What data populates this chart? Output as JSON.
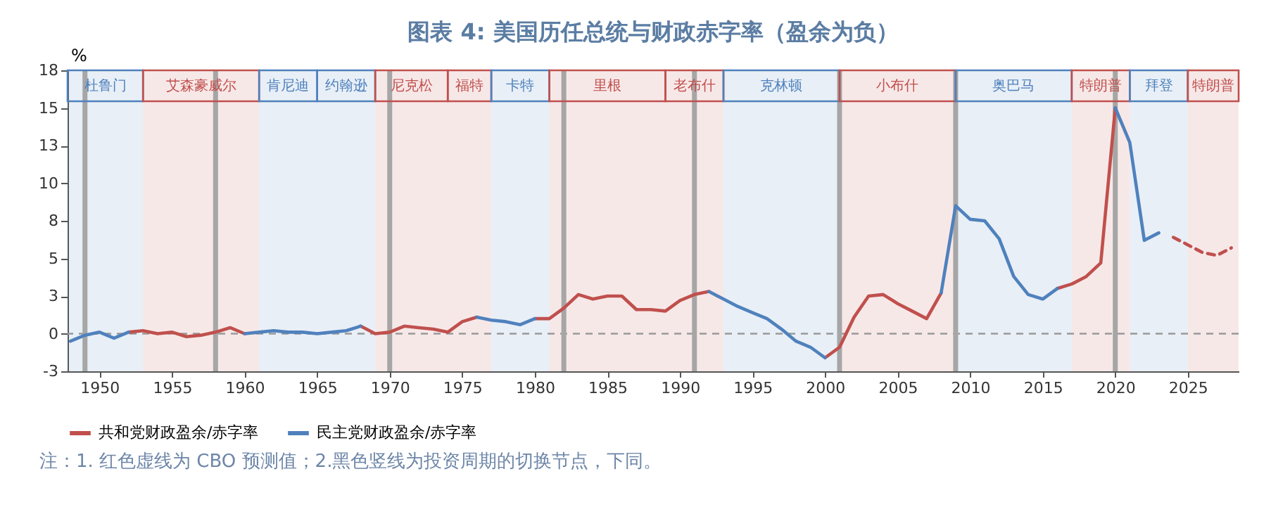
{
  "chart_data": {
    "type": "line",
    "title": "图表 4: 美国历任总统与财政赤字率（盈余为负）",
    "ylabel": "%",
    "annotations": [
      "注：1. 红色虚线为 CBO 预测值；2.黑色竖线为投资周期的切换节点，下同。"
    ],
    "x": [
      1948,
      1949,
      1950,
      1951,
      1952,
      1953,
      1954,
      1955,
      1956,
      1957,
      1958,
      1959,
      1960,
      1961,
      1962,
      1963,
      1964,
      1965,
      1966,
      1967,
      1968,
      1969,
      1970,
      1971,
      1972,
      1973,
      1974,
      1975,
      1976,
      1977,
      1978,
      1979,
      1980,
      1981,
      1982,
      1983,
      1984,
      1985,
      1986,
      1987,
      1988,
      1989,
      1990,
      1991,
      1992,
      1993,
      1994,
      1995,
      1996,
      1997,
      1998,
      1999,
      2000,
      2001,
      2002,
      2003,
      2004,
      2005,
      2006,
      2007,
      2008,
      2009,
      2010,
      2011,
      2012,
      2013,
      2014,
      2015,
      2016,
      2017,
      2018,
      2019,
      2020,
      2021,
      2022,
      2023
    ],
    "series": [
      {
        "name": "共和党财政盈余/赤字率",
        "color": "#c0504d",
        "values": [
          null,
          null,
          null,
          null,
          0.1,
          0.2,
          0,
          0.1,
          -0.2,
          -0.1,
          0.1,
          0.4,
          0,
          null,
          null,
          null,
          null,
          null,
          null,
          null,
          0.5,
          0,
          0.1,
          0.5,
          0.4,
          0.3,
          0.1,
          0.8,
          1.1,
          null,
          null,
          null,
          1.0,
          1.0,
          1.7,
          2.6,
          2.3,
          2.5,
          2.5,
          1.6,
          1.6,
          1.5,
          2.2,
          2.6,
          2.8,
          null,
          null,
          null,
          null,
          null,
          null,
          null,
          -1.6,
          -0.9,
          1.1,
          2.5,
          2.6,
          2.0,
          1.5,
          1.0,
          2.7,
          null,
          null,
          null,
          null,
          null,
          null,
          null,
          3.0,
          3.3,
          3.8,
          4.7,
          15.0,
          null,
          null,
          null
        ]
      },
      {
        "name": "民主党财政盈余/赤字率",
        "color": "#4f81bd",
        "values": [
          -0.5,
          -0.1,
          0.1,
          -0.3,
          0.1,
          null,
          null,
          null,
          null,
          null,
          null,
          null,
          0,
          0.1,
          0.2,
          0.1,
          0.1,
          0,
          0.1,
          0.2,
          0.5,
          null,
          null,
          null,
          null,
          null,
          null,
          null,
          1.1,
          0.9,
          0.8,
          0.6,
          1.0,
          null,
          null,
          null,
          null,
          null,
          null,
          null,
          null,
          null,
          null,
          null,
          2.8,
          2.3,
          1.8,
          1.4,
          1.0,
          0.3,
          -0.5,
          -0.9,
          -1.6,
          null,
          null,
          null,
          null,
          null,
          null,
          null,
          2.7,
          8.5,
          7.6,
          7.5,
          6.3,
          3.8,
          2.6,
          2.3,
          3.0,
          null,
          null,
          null,
          15.0,
          12.7,
          6.2,
          6.7
        ]
      },
      {
        "color": "#c0504d",
        "line_style": "dashed",
        "x": [
          2024,
          2025,
          2026,
          2027,
          2028
        ],
        "values": [
          6.4,
          5.9,
          5.4,
          5.2,
          5.7
        ]
      }
    ],
    "xlim": [
      1947.8,
      2028.5
    ],
    "xticks": [
      1950,
      1955,
      1960,
      1965,
      1970,
      1975,
      1980,
      1985,
      1990,
      1995,
      2000,
      2005,
      2010,
      2015,
      2020,
      2025
    ],
    "ylim": [
      -2.5,
      17.5
    ],
    "yticks": [
      {
        "value": -2.5,
        "label": "-3"
      },
      0,
      {
        "value": 2.5,
        "label": "3"
      },
      5,
      {
        "value": 7.5,
        "label": "8"
      },
      10,
      {
        "value": 12.5,
        "label": "13"
      },
      15,
      {
        "value": 17.5,
        "label": "18"
      }
    ],
    "legend": "bottom",
    "ref_lines": [
      {
        "axis": "y",
        "value": 0,
        "color": "#999999",
        "line_style": "dashed"
      },
      {
        "axis": "x",
        "value": 1949,
        "color": "#a6a6a6"
      },
      {
        "axis": "x",
        "value": 1958,
        "color": "#a6a6a6"
      },
      {
        "axis": "x",
        "value": 1970,
        "color": "#a6a6a6"
      },
      {
        "axis": "x",
        "value": 1982,
        "color": "#a6a6a6"
      },
      {
        "axis": "x",
        "value": 1991,
        "color": "#a6a6a6"
      },
      {
        "axis": "x",
        "value": 2001,
        "color": "#a6a6a6"
      },
      {
        "axis": "x",
        "value": 2009,
        "color": "#a6a6a6"
      },
      {
        "axis": "x",
        "value": 2020,
        "color": "#a6a6a6"
      }
    ],
    "bands": [
      {
        "axis": "x",
        "from": 1947.8,
        "to": 1953,
        "label": "杜鲁门",
        "color": "#4f81bd"
      },
      {
        "axis": "x",
        "from": 1953,
        "to": 1961,
        "label": "艾森豪威尔",
        "color": "#c0504d"
      },
      {
        "axis": "x",
        "from": 1961,
        "to": 1965,
        "label": "肯尼迪",
        "color": "#4f81bd"
      },
      {
        "axis": "x",
        "from": 1965,
        "to": 1969,
        "label": "约翰逊",
        "color": "#4f81bd"
      },
      {
        "axis": "x",
        "from": 1969,
        "to": 1974,
        "label": "尼克松",
        "color": "#c0504d"
      },
      {
        "axis": "x",
        "from": 1974,
        "to": 1977,
        "label": "福特",
        "color": "#c0504d"
      },
      {
        "axis": "x",
        "from": 1977,
        "to": 1981,
        "label": "卡特",
        "color": "#4f81bd"
      },
      {
        "axis": "x",
        "from": 1981,
        "to": 1989,
        "label": "里根",
        "color": "#c0504d"
      },
      {
        "axis": "x",
        "from": 1989,
        "to": 1993,
        "label": "老布什",
        "color": "#c0504d"
      },
      {
        "axis": "x",
        "from": 1993,
        "to": 2001,
        "label": "克林顿",
        "color": "#4f81bd"
      },
      {
        "axis": "x",
        "from": 2001,
        "to": 2009,
        "label": "小布什",
        "color": "#c0504d"
      },
      {
        "axis": "x",
        "from": 2009,
        "to": 2017,
        "label": "奥巴马",
        "color": "#4f81bd"
      },
      {
        "axis": "x",
        "from": 2017,
        "to": 2021,
        "label": "特朗普",
        "color": "#c0504d"
      },
      {
        "axis": "x",
        "from": 2021,
        "to": 2025,
        "label": "拜登",
        "color": "#4f81bd"
      },
      {
        "axis": "x",
        "from": 2025,
        "to": 2028.5,
        "label": "特朗普",
        "color": "#c0504d"
      }
    ]
  }
}
